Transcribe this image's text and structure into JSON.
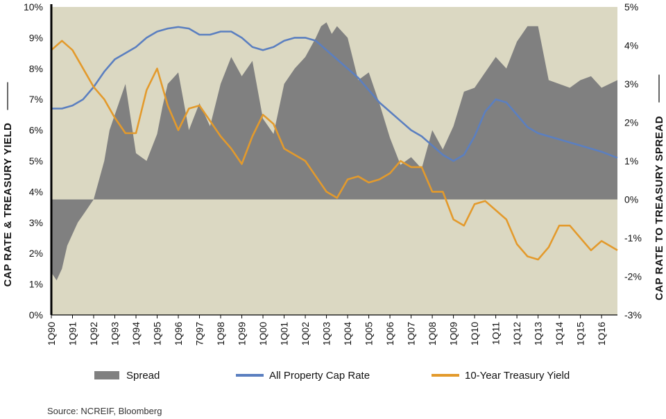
{
  "chart_data": {
    "type": "area+line",
    "source": "Source: NCREIF, Bloomberg",
    "left_axis": {
      "title": "CAP RATE & TREASURY YIELD",
      "range": [
        0,
        10
      ],
      "ticks": [
        "0%",
        "1%",
        "2%",
        "3%",
        "4%",
        "5%",
        "6%",
        "7%",
        "8%",
        "9%",
        "10%"
      ]
    },
    "right_axis": {
      "title": "CAP RATE TO  TREASURY SPREAD",
      "range": [
        -3,
        5
      ],
      "ticks": [
        "-3%",
        "-2%",
        "-1%",
        "0%",
        "1%",
        "2%",
        "3%",
        "4%",
        "5%"
      ]
    },
    "x_labels": [
      "1Q90",
      "1Q91",
      "1Q92",
      "1Q93",
      "1Q94",
      "1Q95",
      "1Q96",
      "7Q97",
      "1Q98",
      "1Q99",
      "1Q00",
      "1Q01",
      "1Q02",
      "1Q03",
      "1Q04",
      "1Q05",
      "1Q06",
      "1Q07",
      "1Q08",
      "1Q09",
      "1Q10",
      "1Q11",
      "1Q12",
      "1Q13",
      "1Q14",
      "1Q15",
      "1Q16"
    ],
    "x_range": [
      1990.0,
      2016.75
    ],
    "legend": [
      {
        "name": "Spread",
        "color": "#808080",
        "kind": "area"
      },
      {
        "name": "All Property Cap Rate",
        "color": "#5b7fc0",
        "kind": "line"
      },
      {
        "name": "10-Year Treasury Yield",
        "color": "#e39a2c",
        "kind": "line"
      }
    ],
    "cap_rate": {
      "x": [
        1990.0,
        1990.5,
        1991.0,
        1991.5,
        1992.0,
        1992.5,
        1993.0,
        1993.5,
        1994.0,
        1994.5,
        1995.0,
        1995.5,
        1996.0,
        1996.5,
        1997.0,
        1997.5,
        1998.0,
        1998.5,
        1999.0,
        1999.5,
        2000.0,
        2000.5,
        2001.0,
        2001.5,
        2002.0,
        2002.5,
        2003.0,
        2003.5,
        2004.0,
        2004.5,
        2005.0,
        2005.5,
        2006.0,
        2006.5,
        2007.0,
        2007.5,
        2008.0,
        2008.5,
        2009.0,
        2009.5,
        2010.0,
        2010.5,
        2011.0,
        2011.5,
        2012.0,
        2012.5,
        2013.0,
        2013.5,
        2014.0,
        2014.5,
        2015.0,
        2015.5,
        2016.0,
        2016.75
      ],
      "values": [
        6.7,
        6.7,
        6.8,
        7.0,
        7.4,
        7.9,
        8.3,
        8.5,
        8.7,
        9.0,
        9.2,
        9.3,
        9.35,
        9.3,
        9.1,
        9.1,
        9.2,
        9.2,
        9.0,
        8.7,
        8.6,
        8.7,
        8.9,
        9.0,
        9.0,
        8.9,
        8.6,
        8.3,
        8.0,
        7.7,
        7.3,
        6.9,
        6.6,
        6.3,
        6.0,
        5.8,
        5.5,
        5.2,
        5.0,
        5.2,
        5.8,
        6.6,
        7.0,
        6.9,
        6.5,
        6.1,
        5.9,
        5.8,
        5.7,
        5.6,
        5.5,
        5.4,
        5.3,
        5.1
      ]
    },
    "treasury_yield": {
      "x": [
        1990.0,
        1990.5,
        1991.0,
        1991.5,
        1992.0,
        1992.5,
        1993.0,
        1993.5,
        1994.0,
        1994.5,
        1995.0,
        1995.5,
        1996.0,
        1996.5,
        1997.0,
        1997.5,
        1998.0,
        1998.5,
        1999.0,
        1999.5,
        2000.0,
        2000.5,
        2001.0,
        2001.5,
        2002.0,
        2002.5,
        2003.0,
        2003.5,
        2004.0,
        2004.5,
        2005.0,
        2005.5,
        2006.0,
        2006.5,
        2007.0,
        2007.5,
        2008.0,
        2008.5,
        2009.0,
        2009.5,
        2010.0,
        2010.5,
        2011.0,
        2011.5,
        2012.0,
        2012.5,
        2013.0,
        2013.5,
        2014.0,
        2014.5,
        2015.0,
        2015.5,
        2016.0,
        2016.75
      ],
      "values": [
        8.6,
        8.9,
        8.6,
        8.0,
        7.4,
        7.0,
        6.4,
        5.9,
        5.9,
        7.3,
        8.0,
        6.8,
        6.0,
        6.7,
        6.8,
        6.3,
        5.8,
        5.4,
        4.9,
        5.8,
        6.5,
        6.2,
        5.4,
        5.2,
        5.0,
        4.5,
        4.0,
        3.8,
        4.4,
        4.5,
        4.3,
        4.4,
        4.6,
        5.0,
        4.8,
        4.8,
        4.0,
        4.0,
        3.1,
        2.9,
        3.6,
        3.7,
        3.4,
        3.1,
        2.3,
        1.9,
        1.8,
        2.2,
        2.9,
        2.9,
        2.5,
        2.1,
        2.4,
        2.1
      ]
    },
    "spread": {
      "x": [
        1990.0,
        1990.25,
        1990.5,
        1990.75,
        1991.0,
        1991.25,
        1991.5,
        1992.0,
        1992.5,
        1992.75,
        1993.0,
        1993.5,
        1994.0,
        1994.5,
        1995.0,
        1995.25,
        1995.5,
        1996.0,
        1996.5,
        1997.0,
        1997.5,
        1998.0,
        1998.5,
        1999.0,
        1999.5,
        2000.0,
        2000.5,
        2001.0,
        2001.5,
        2002.0,
        2002.5,
        2002.75,
        2003.0,
        2003.25,
        2003.5,
        2004.0,
        2004.5,
        2005.0,
        2005.5,
        2006.0,
        2006.5,
        2007.0,
        2007.5,
        2008.0,
        2008.5,
        2009.0,
        2009.5,
        2010.0,
        2010.5,
        2011.0,
        2011.5,
        2012.0,
        2012.5,
        2013.0,
        2013.5,
        2014.0,
        2014.5,
        2015.0,
        2015.5,
        2016.0,
        2016.75
      ],
      "values": [
        -1.9,
        -2.1,
        -1.8,
        -1.2,
        -0.9,
        -0.6,
        -0.4,
        0.0,
        1.0,
        1.8,
        2.2,
        3.0,
        1.2,
        1.0,
        1.7,
        2.4,
        3.0,
        3.3,
        1.8,
        2.5,
        1.9,
        3.0,
        3.7,
        3.2,
        3.6,
        2.1,
        1.7,
        3.0,
        3.4,
        3.7,
        4.2,
        4.5,
        4.6,
        4.3,
        4.5,
        4.2,
        3.1,
        3.3,
        2.5,
        1.6,
        0.9,
        1.1,
        0.8,
        1.8,
        1.3,
        1.9,
        2.8,
        2.9,
        3.3,
        3.7,
        3.4,
        4.1,
        4.5,
        4.5,
        3.1,
        3.0,
        2.9,
        3.1,
        3.2,
        2.9,
        3.1
      ]
    }
  }
}
